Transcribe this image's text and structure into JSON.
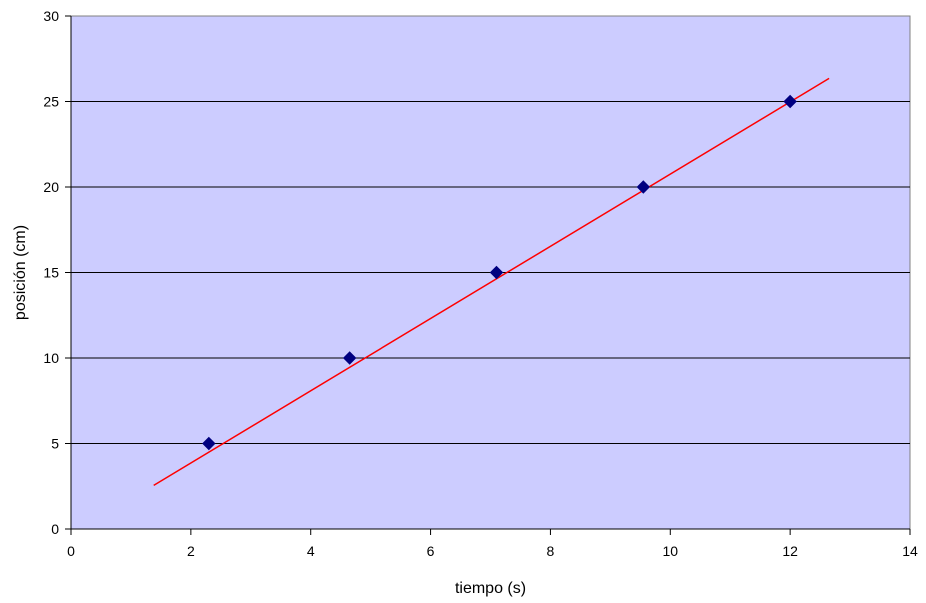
{
  "chart_data": {
    "type": "scatter",
    "title": "",
    "xlabel": "tiempo (s)",
    "ylabel": "posición (cm)",
    "xlim": [
      0,
      14
    ],
    "ylim": [
      0,
      30
    ],
    "x_ticks": [
      0,
      2,
      4,
      6,
      8,
      10,
      12,
      14
    ],
    "y_ticks": [
      0,
      5,
      10,
      15,
      20,
      25,
      30
    ],
    "grid": "horizontal",
    "legend": "none",
    "plot_background": "#ccccff",
    "series": [
      {
        "marker": "diamond",
        "color": "#000080",
        "points": [
          {
            "x": 2.3,
            "y": 5
          },
          {
            "x": 4.65,
            "y": 10
          },
          {
            "x": 7.1,
            "y": 15
          },
          {
            "x": 9.55,
            "y": 20
          },
          {
            "x": 12.0,
            "y": 25
          }
        ]
      }
    ],
    "trendline": {
      "color": "#ff0000",
      "from": {
        "x": 1.38,
        "y": 2.55
      },
      "to": {
        "x": 12.65,
        "y": 26.35
      }
    }
  }
}
